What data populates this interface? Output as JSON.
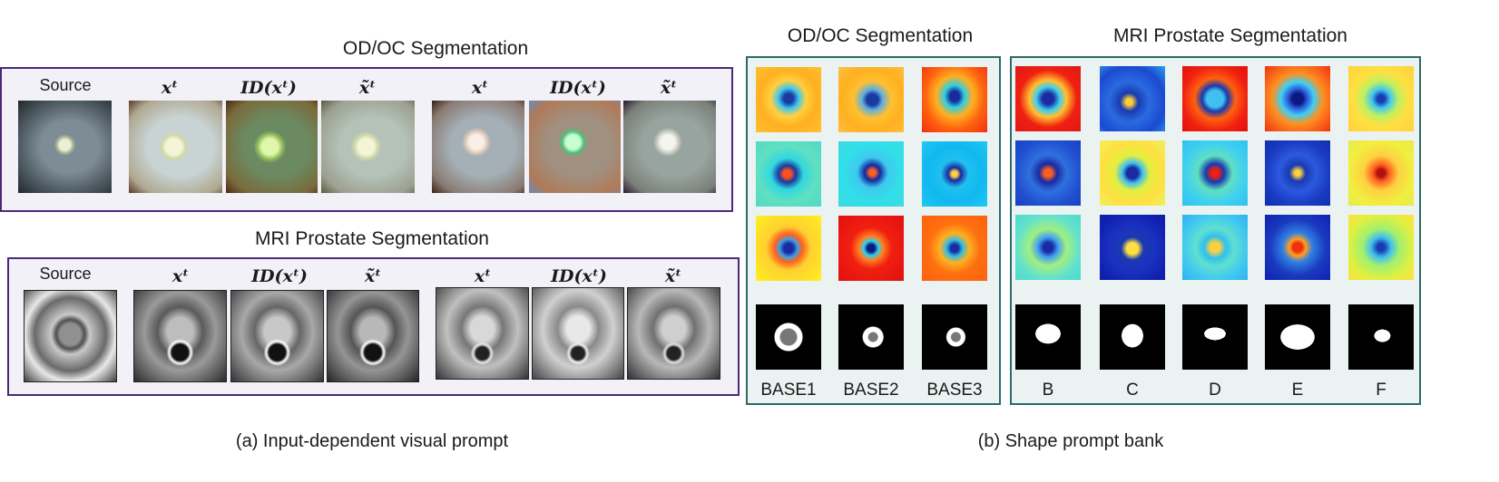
{
  "left": {
    "od_title": "OD/OC Segmentation",
    "mri_title": "MRI Prostate Segmentation",
    "caption": "(a) Input-dependent visual prompt",
    "od_headers": [
      "Source",
      "xᵗ",
      "ID(xᵗ)",
      "x̃ᵗ",
      "xᵗ",
      "ID(xᵗ)",
      "x̃ᵗ"
    ],
    "mri_headers": [
      "Source",
      "xᵗ",
      "ID(xᵗ)",
      "x̃ᵗ",
      "xᵗ",
      "ID(xᵗ)",
      "x̃ᵗ"
    ]
  },
  "right": {
    "od_title": "OD/OC Segmentation",
    "mri_title": "MRI Prostate Segmentation",
    "caption": "(b) Shape prompt bank",
    "od_labels": [
      "BASE1",
      "BASE2",
      "BASE3"
    ],
    "mri_labels": [
      "B",
      "C",
      "D",
      "E",
      "F"
    ]
  },
  "colors": {
    "purple_border": "#4a2a78",
    "teal_border": "#2b6a68",
    "panel_purple_bg": "#f2f1f8",
    "panel_teal_bg": "#eaf3f2"
  }
}
